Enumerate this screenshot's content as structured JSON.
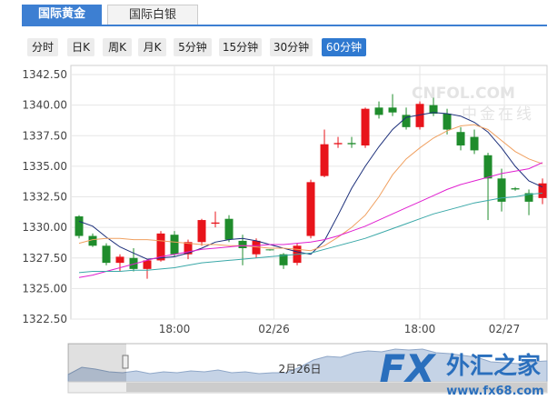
{
  "tabs": [
    "国际黄金",
    "国际白银"
  ],
  "active_tab": 0,
  "periods": [
    "分时",
    "日K",
    "周K",
    "月K",
    "5分钟",
    "15分钟",
    "30分钟",
    "60分钟"
  ],
  "active_period": 7,
  "watermarks": {
    "site": "CNFOL.COM",
    "site_cn": "中金在线",
    "logo": "FX",
    "logo_cn": "外汇之家",
    "url": "www.fx68.com"
  },
  "navigator_label": "2月26日",
  "chart_data": {
    "type": "candlestick",
    "up_color": "#e8141b",
    "down_color": "#1f8c2c",
    "open": [
      1330.9,
      1329.3,
      1328.5,
      1327.1,
      1327.5,
      1326.6,
      1327.3,
      1329.4,
      1327.8,
      1328.8,
      1330.3,
      1330.7,
      1328.9,
      1327.8,
      1328.2,
      1327.8,
      1327.1,
      1329.3,
      1334.2,
      1336.8,
      1336.9,
      1336.7,
      1339.8,
      1339.8,
      1339.2,
      1338.2,
      1340.0,
      1339.3,
      1337.8,
      1337.4,
      1335.9,
      1334.0,
      1333.2,
      1332.8,
      1332.4
    ],
    "high": [
      1331.0,
      1329.5,
      1328.7,
      1327.8,
      1328.3,
      1327.4,
      1329.7,
      1329.7,
      1329.0,
      1330.7,
      1331.3,
      1331.0,
      1329.4,
      1329.1,
      1328.2,
      1327.9,
      1328.7,
      1333.9,
      1338.0,
      1337.4,
      1337.4,
      1339.8,
      1340.3,
      1340.9,
      1339.8,
      1340.3,
      1340.6,
      1339.7,
      1338.2,
      1338.0,
      1336.1,
      1334.8,
      1333.3,
      1333.1,
      1334.0
    ],
    "low": [
      1329.1,
      1328.4,
      1326.9,
      1326.4,
      1326.4,
      1325.8,
      1327.2,
      1327.6,
      1327.4,
      1328.5,
      1330.0,
      1328.8,
      1326.9,
      1327.5,
      1328.1,
      1326.6,
      1326.9,
      1329.1,
      1334.1,
      1336.5,
      1336.5,
      1336.5,
      1338.9,
      1339.1,
      1338.0,
      1338.0,
      1339.1,
      1337.6,
      1336.3,
      1336.0,
      1330.6,
      1331.3,
      1333.0,
      1331.0,
      1331.9
    ],
    "close": [
      1329.3,
      1328.5,
      1327.1,
      1327.6,
      1326.6,
      1327.3,
      1329.5,
      1327.8,
      1328.8,
      1330.6,
      1330.4,
      1329.0,
      1328.3,
      1328.9,
      1328.15,
      1326.9,
      1328.5,
      1333.7,
      1336.8,
      1336.9,
      1336.8,
      1339.7,
      1339.2,
      1339.4,
      1338.2,
      1340.1,
      1339.3,
      1338.0,
      1336.7,
      1336.3,
      1334.0,
      1332.1,
      1333.1,
      1332.1,
      1333.6
    ],
    "series": [
      {
        "color": "#1c2f7a",
        "values": [
          1330.5,
          1330.1,
          1329.2,
          1328.4,
          1327.9,
          1327.4,
          1327.5,
          1327.6,
          1327.9,
          1328.3,
          1328.8,
          1329.0,
          1329.1,
          1328.9,
          1328.6,
          1328.3,
          1328.0,
          1327.8,
          1328.9,
          1331.0,
          1333.2,
          1335.0,
          1336.6,
          1338.0,
          1339.0,
          1339.2,
          1339.4,
          1339.3,
          1339.1,
          1338.6,
          1337.8,
          1336.5,
          1335.0,
          1333.8,
          1333.3
        ]
      },
      {
        "color": "#f0a060",
        "values": [
          1328.7,
          1329.0,
          1329.1,
          1329.1,
          1329.0,
          1329.0,
          1328.9,
          1328.8,
          1328.7,
          1328.6,
          1328.6,
          1328.5,
          1328.5,
          1328.4,
          1328.3,
          1328.3,
          1328.2,
          1328.1,
          1328.5,
          1329.2,
          1330.0,
          1331.0,
          1332.5,
          1334.3,
          1335.6,
          1336.5,
          1337.3,
          1337.9,
          1338.3,
          1338.4,
          1338.0,
          1337.1,
          1336.2,
          1335.6,
          1335.2
        ]
      },
      {
        "color": "#e020d0",
        "values": [
          1325.9,
          1326.1,
          1326.4,
          1326.7,
          1327.0,
          1327.3,
          1327.6,
          1327.8,
          1328.0,
          1328.2,
          1328.3,
          1328.4,
          1328.5,
          1328.5,
          1328.6,
          1328.6,
          1328.7,
          1328.8,
          1329.0,
          1329.3,
          1329.7,
          1330.1,
          1330.6,
          1331.1,
          1331.6,
          1332.1,
          1332.6,
          1333.1,
          1333.5,
          1333.8,
          1334.1,
          1334.4,
          1334.6,
          1334.8,
          1335.3
        ]
      },
      {
        "color": "#3aa8a8",
        "values": [
          1326.3,
          1326.4,
          1326.4,
          1326.4,
          1326.5,
          1326.5,
          1326.6,
          1326.7,
          1326.9,
          1327.1,
          1327.2,
          1327.3,
          1327.4,
          1327.5,
          1327.6,
          1327.7,
          1327.8,
          1327.9,
          1328.2,
          1328.5,
          1328.8,
          1329.1,
          1329.5,
          1329.9,
          1330.3,
          1330.7,
          1331.1,
          1331.4,
          1331.7,
          1332.0,
          1332.2,
          1332.4,
          1332.5,
          1332.7,
          1332.8
        ]
      }
    ],
    "xlim": [
      -0.6,
      34.33
    ],
    "xticks": [
      {
        "value": 7,
        "label": "18:00"
      },
      {
        "value": 14.3,
        "label": "02/26"
      },
      {
        "value": 25,
        "label": "18:00"
      },
      {
        "value": 31.2,
        "label": "02/27"
      }
    ],
    "ylim": [
      1322.5,
      1342.5
    ],
    "yticks": [
      {
        "value": 1322.5,
        "label": "1322.50"
      },
      {
        "value": 1325,
        "label": "1325.00"
      },
      {
        "value": 1327.5,
        "label": "1327.50"
      },
      {
        "value": 1330,
        "label": "1330.00"
      },
      {
        "value": 1332.5,
        "label": "1332.50"
      },
      {
        "value": 1335,
        "label": "1335.00"
      },
      {
        "value": 1337.5,
        "label": "1337.50"
      },
      {
        "value": 1340,
        "label": "1340.00"
      },
      {
        "value": 1342.5,
        "label": "1342.50"
      }
    ],
    "grid": true
  }
}
